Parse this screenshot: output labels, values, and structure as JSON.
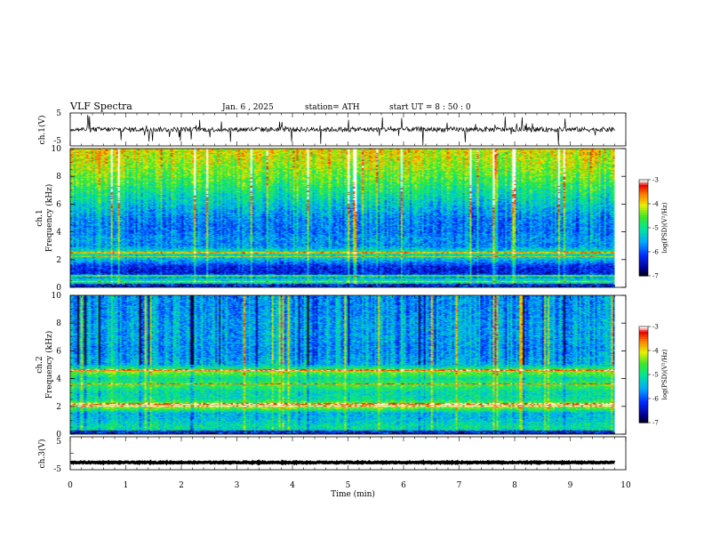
{
  "header": {
    "title": "VLF  Spectra",
    "date": "Jan.  6  , 2025",
    "station": "station= ATH",
    "start": "start  UT  =   8  : 50 : 0"
  },
  "chart_data": [
    {
      "type": "line",
      "panel": "ch1-waveform",
      "ylabel": "ch.1(V)",
      "ylim": [
        -5,
        5
      ],
      "yticks": [
        "5",
        "-5"
      ],
      "xlim": [
        0,
        10
      ],
      "series": [
        {
          "x_range": [
            0,
            9.8
          ],
          "values_approx_mean": 0,
          "noise_amplitude": 1.5,
          "spikes": true
        }
      ]
    },
    {
      "type": "heatmap",
      "panel": "ch1-spectrogram",
      "ylabel": [
        "ch.1",
        "Frequency (kHz)"
      ],
      "ylim": [
        0,
        10
      ],
      "yticks": [
        "0",
        "2",
        "4",
        "6",
        "8",
        "10"
      ],
      "xlim": [
        0,
        10
      ],
      "data_x_range": [
        0,
        9.8
      ],
      "value_label": "log(PSD)(V²/Hz)",
      "colorbar_ticks": [
        "-3",
        "-4",
        "-5",
        "-6",
        "-7"
      ],
      "colorbar_range": [
        -7,
        -3
      ],
      "profile_freqs_khz": [
        0,
        0.5,
        1,
        1.5,
        2,
        2.5,
        3,
        3.5,
        4,
        5,
        6,
        7,
        8,
        9,
        10
      ],
      "profile_log_psd": [
        -5.0,
        -5.2,
        -6.3,
        -6.2,
        -5.4,
        -5.0,
        -5.7,
        -5.6,
        -5.8,
        -5.7,
        -5.3,
        -4.9,
        -4.5,
        -4.2,
        -4.0
      ],
      "bright_lines_khz": [
        2.2,
        2.5,
        0.8,
        0.4
      ]
    },
    {
      "type": "heatmap",
      "panel": "ch2-spectrogram",
      "ylabel": [
        "ch.2",
        "Frequency (kHz)"
      ],
      "ylim": [
        0,
        10
      ],
      "yticks": [
        "0",
        "2",
        "4",
        "6",
        "8",
        "10"
      ],
      "xlim": [
        0,
        10
      ],
      "data_x_range": [
        0,
        9.8
      ],
      "value_label": "log(PSD)(V²/Hz)",
      "colorbar_ticks": [
        "-3",
        "-4",
        "-5",
        "-6",
        "-7"
      ],
      "colorbar_range": [
        -7,
        -3
      ],
      "profile_freqs_khz": [
        0,
        0.5,
        1,
        1.5,
        2,
        2.5,
        3,
        3.5,
        4,
        4.5,
        5,
        6,
        7,
        8,
        9,
        10
      ],
      "profile_log_psd": [
        -5.3,
        -5.0,
        -5.3,
        -5.4,
        -4.0,
        -5.0,
        -5.1,
        -4.6,
        -5.0,
        -4.3,
        -5.4,
        -5.6,
        -5.5,
        -5.5,
        -5.6,
        -5.6
      ],
      "bright_lines_khz": [
        2.0,
        2.15,
        3.6,
        4.6
      ]
    },
    {
      "type": "line",
      "panel": "ch3-waveform",
      "ylabel": "ch.3(V)",
      "ylim": [
        -5,
        5
      ],
      "yticks": [
        "5",
        "-5"
      ],
      "xlabel": "Time  (min)",
      "xlim": [
        0,
        10
      ],
      "xticks": [
        "0",
        "1",
        "2",
        "3",
        "4",
        "5",
        "6",
        "7",
        "8",
        "9",
        "10"
      ],
      "series": [
        {
          "x_range": [
            0,
            9.8
          ],
          "values_approx_mean": -2.8,
          "noise_amplitude": 0.3
        }
      ]
    }
  ]
}
